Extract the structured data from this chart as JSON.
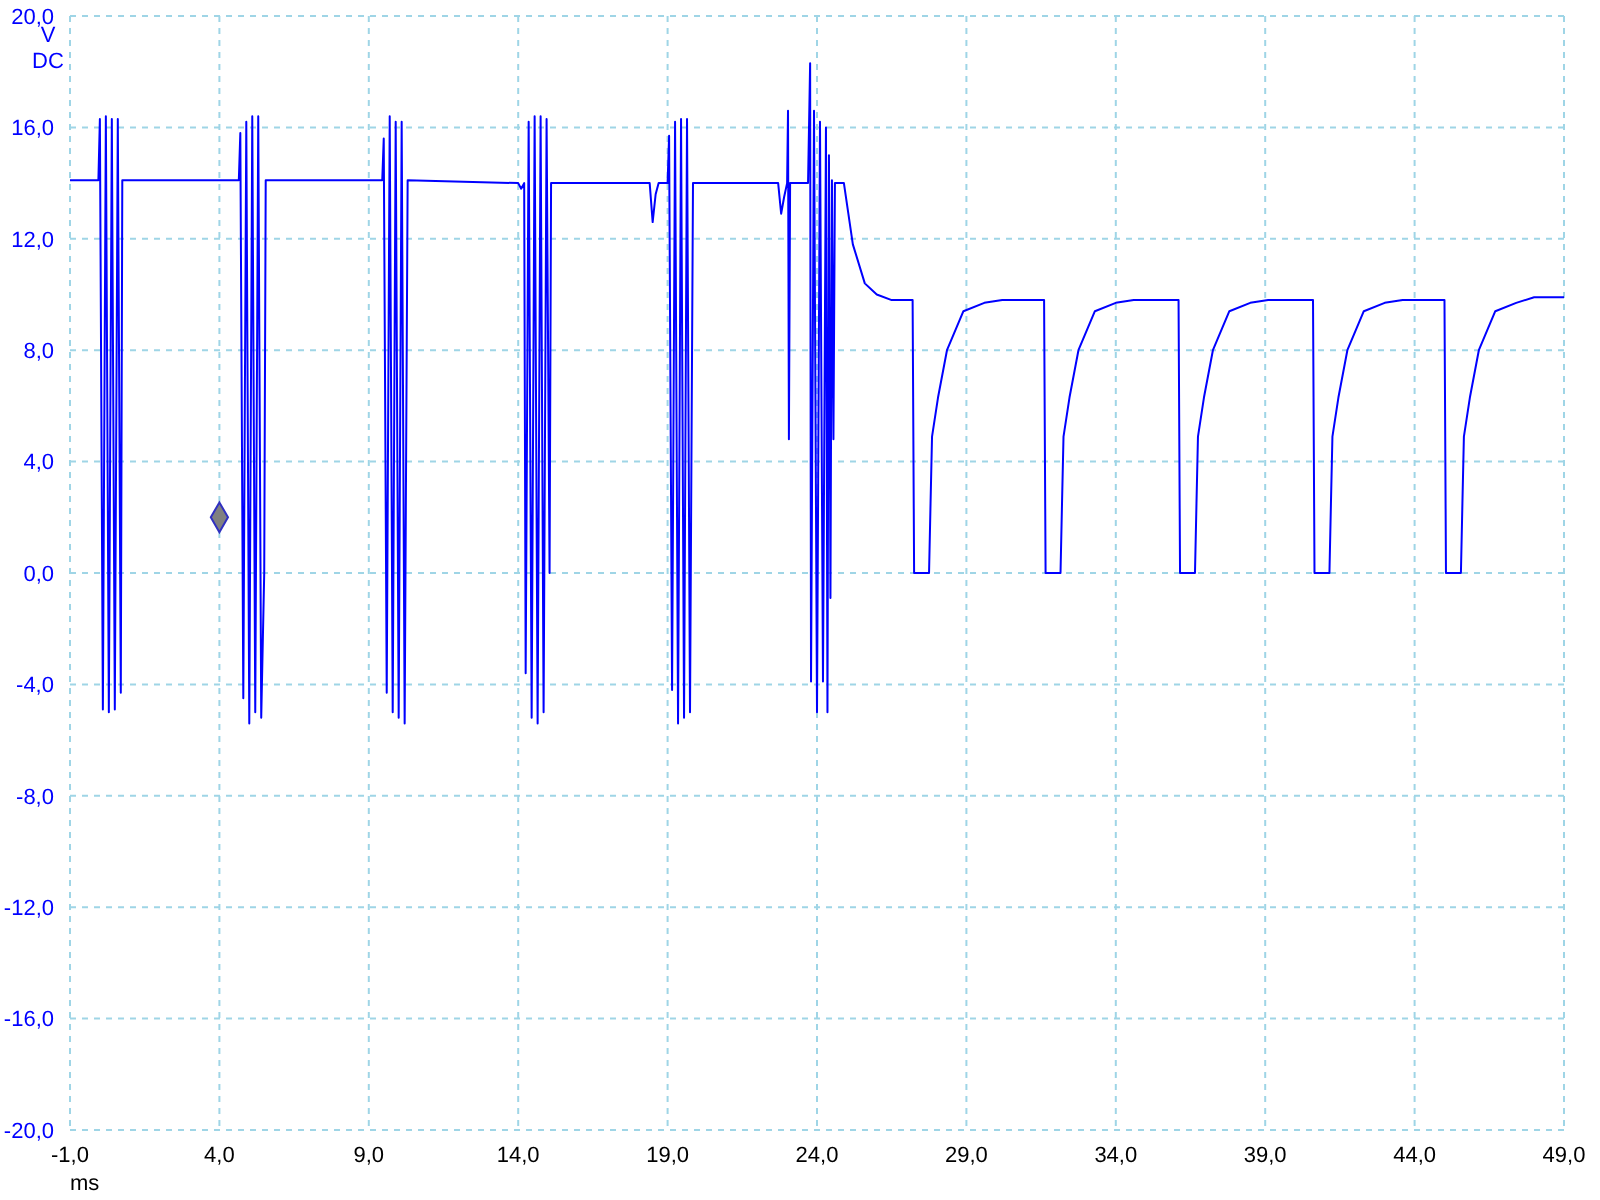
{
  "chart_data": {
    "type": "line",
    "xlabel": "ms",
    "ylabel": "V DC",
    "xlim": [
      -1,
      49
    ],
    "xticks": [
      {
        "value": -1,
        "label": "-1,0"
      },
      {
        "value": 4,
        "label": "4,0"
      },
      {
        "value": 9,
        "label": "9,0"
      },
      {
        "value": 14,
        "label": "14,0"
      },
      {
        "value": 19,
        "label": "19,0"
      },
      {
        "value": 24,
        "label": "24,0"
      },
      {
        "value": 29,
        "label": "29,0"
      },
      {
        "value": 34,
        "label": "34,0"
      },
      {
        "value": 39,
        "label": "39,0"
      },
      {
        "value": 44,
        "label": "44,0"
      },
      {
        "value": 49,
        "label": "49,0"
      }
    ],
    "ylim": [
      -20,
      20
    ],
    "yticks": [
      {
        "value": -20,
        "label": "-20,0"
      },
      {
        "value": -16,
        "label": "-16,0"
      },
      {
        "value": -12,
        "label": "-12,0"
      },
      {
        "value": -8,
        "label": "-8,0"
      },
      {
        "value": -4,
        "label": "-4,0"
      },
      {
        "value": 0,
        "label": "0,0"
      },
      {
        "value": 4,
        "label": "4,0"
      },
      {
        "value": 8,
        "label": "8,0"
      },
      {
        "value": 12,
        "label": "12,0"
      },
      {
        "value": 16,
        "label": "16,0"
      },
      {
        "value": 20,
        "label": "20,0"
      }
    ],
    "grid": true,
    "series": [
      {
        "color": "#0000ff",
        "marker": "none",
        "x": [
          -1.0,
          -0.05,
          0.0,
          0.1,
          0.2,
          0.3,
          0.4,
          0.5,
          0.6,
          0.7,
          0.75,
          4.65,
          4.7,
          4.8,
          4.9,
          5.0,
          5.1,
          5.2,
          5.3,
          5.4,
          5.5,
          5.55,
          9.45,
          9.5,
          9.6,
          9.7,
          9.8,
          9.9,
          10.0,
          10.1,
          10.2,
          10.3,
          14.0,
          14.1,
          14.2,
          14.25,
          14.35,
          14.45,
          14.55,
          14.65,
          14.75,
          14.85,
          14.95,
          15.05,
          15.1,
          18.4,
          18.5,
          18.6,
          18.7,
          19.0,
          19.05,
          19.15,
          19.25,
          19.35,
          19.45,
          19.55,
          19.65,
          19.75,
          19.85,
          22.7,
          22.8,
          22.9,
          23.0,
          23.03,
          23.06,
          23.1,
          23.7,
          23.77,
          23.8,
          23.9,
          24.0,
          24.1,
          24.2,
          24.3,
          24.35,
          24.4,
          24.45,
          24.5,
          24.55,
          24.6,
          24.9,
          25.2,
          25.6,
          26.0,
          26.5,
          27.2,
          27.25,
          27.75,
          27.8,
          27.85,
          28.05,
          28.35,
          28.9,
          29.6,
          30.2,
          31.6,
          31.65,
          32.15,
          32.2,
          32.25,
          32.45,
          32.75,
          33.3,
          34.0,
          34.6,
          36.1,
          36.15,
          36.65,
          36.7,
          36.75,
          36.95,
          37.25,
          37.8,
          38.5,
          39.1,
          40.6,
          40.65,
          41.15,
          41.2,
          41.25,
          41.45,
          41.75,
          42.3,
          43.0,
          43.6,
          45.0,
          45.05,
          45.55,
          45.6,
          45.65,
          45.85,
          46.15,
          46.7,
          47.4,
          48.0,
          49.0
        ],
        "values": [
          14.1,
          14.1,
          16.3,
          -4.9,
          16.4,
          -5.0,
          16.3,
          -4.9,
          16.3,
          -4.3,
          14.1,
          14.1,
          15.8,
          -4.5,
          16.2,
          -5.4,
          16.4,
          -5.0,
          16.4,
          -5.2,
          0.0,
          14.1,
          14.1,
          15.6,
          -4.3,
          16.4,
          -5.0,
          16.2,
          -5.2,
          16.2,
          -5.4,
          14.1,
          14.0,
          13.8,
          14.0,
          -3.6,
          16.2,
          -5.2,
          16.4,
          -5.4,
          16.4,
          -5.0,
          16.3,
          0.0,
          14.0,
          14.0,
          12.6,
          13.6,
          14.0,
          14.0,
          15.7,
          -4.2,
          16.2,
          -5.4,
          16.3,
          -5.2,
          16.3,
          -5.0,
          14.0,
          14.0,
          12.9,
          13.5,
          14.0,
          16.6,
          4.8,
          14.0,
          14.0,
          18.3,
          -3.9,
          16.6,
          -5.0,
          16.2,
          -3.9,
          16.0,
          -5.0,
          15.0,
          -0.9,
          14.1,
          4.8,
          14.0,
          14.0,
          11.8,
          10.4,
          10.0,
          9.8,
          9.8,
          0.0,
          0.0,
          2.5,
          4.9,
          6.3,
          8.0,
          9.4,
          9.7,
          9.8,
          9.8,
          0.0,
          0.0,
          2.5,
          4.9,
          6.3,
          8.0,
          9.4,
          9.7,
          9.8,
          9.8,
          0.0,
          0.0,
          2.5,
          4.9,
          6.3,
          8.0,
          9.4,
          9.7,
          9.8,
          9.8,
          0.0,
          0.0,
          2.5,
          4.9,
          6.3,
          8.0,
          9.4,
          9.7,
          9.8,
          9.8,
          0.0,
          0.0,
          2.5,
          4.9,
          6.3,
          8.0,
          9.4,
          9.7,
          9.9,
          9.9
        ]
      },
      {
        "type": "scatter",
        "color": "#808080",
        "marker": "diamond",
        "x": [
          4.0
        ],
        "values": [
          2.0
        ]
      }
    ]
  }
}
